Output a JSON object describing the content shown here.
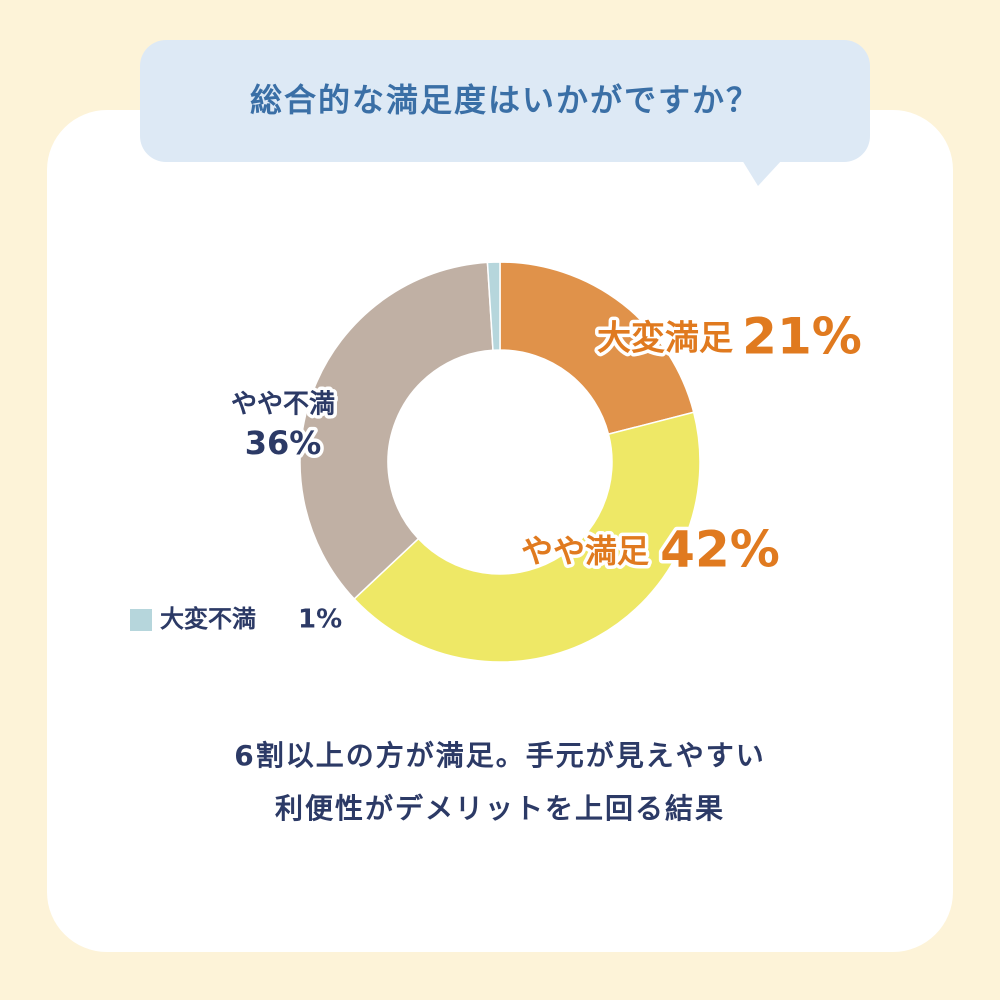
{
  "chart_data": {
    "type": "pie",
    "title": "総合的な満足度はいかがですか？",
    "categories": [
      "大変満足",
      "やや満足",
      "やや不満",
      "大変不満"
    ],
    "values": [
      21,
      42,
      36,
      1
    ],
    "value_labels": [
      "21%",
      "42%",
      "36%",
      "1%"
    ],
    "colors": [
      "#e0924a",
      "#eee866",
      "#c0b0a4",
      "#b6d6dc"
    ],
    "caption": [
      "6割以上の方が満足。手元が見えやすい",
      "利便性がデメリットを上回る結果"
    ]
  }
}
